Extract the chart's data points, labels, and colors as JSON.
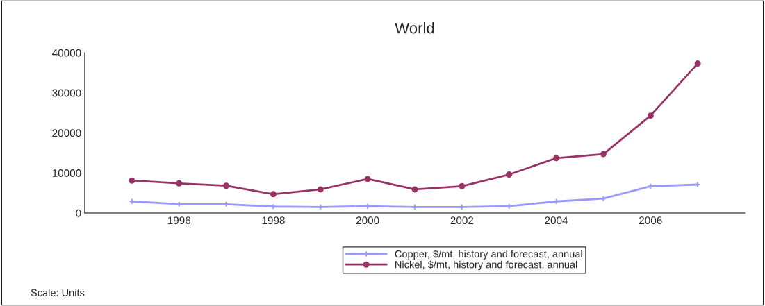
{
  "chart_data": {
    "type": "line",
    "title": "World",
    "x": [
      1995,
      1996,
      1997,
      1998,
      1999,
      2000,
      2001,
      2002,
      2003,
      2004,
      2005,
      2006,
      2007
    ],
    "series": [
      {
        "name": "Copper, $/mt, history and forecast, annual",
        "color": "#9999ff",
        "marker": "cross",
        "values": [
          2900,
          2200,
          2200,
          1600,
          1500,
          1700,
          1500,
          1500,
          1700,
          2900,
          3600,
          6700,
          7100
        ]
      },
      {
        "name": "Nickel, $/mt, history and forecast, annual",
        "color": "#993366",
        "marker": "circle",
        "values": [
          8100,
          7400,
          6800,
          4700,
          5900,
          8500,
          5900,
          6700,
          9600,
          13700,
          14700,
          24300,
          37300
        ]
      }
    ],
    "xlim": [
      1994,
      2008
    ],
    "xticks": [
      1996,
      1998,
      2000,
      2002,
      2004,
      2006
    ],
    "ylim": [
      0,
      40000
    ],
    "yticks": [
      0,
      10000,
      20000,
      30000,
      40000
    ],
    "grid": false,
    "legend": "bottom",
    "line_style": "solid",
    "annotations": [
      "Scale: Units"
    ]
  }
}
